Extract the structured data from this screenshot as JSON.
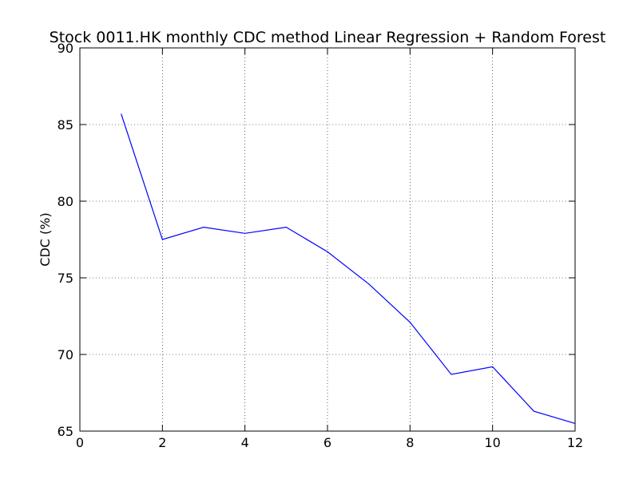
{
  "chart_data": {
    "type": "line",
    "title": "Stock 0011.HK monthly CDC method Linear Regression + Random Forest",
    "xlabel": "",
    "ylabel": "CDC (%)",
    "xlim": [
      0,
      12
    ],
    "ylim": [
      65,
      90
    ],
    "xticks": [
      0,
      2,
      4,
      6,
      8,
      10,
      12
    ],
    "yticks": [
      65,
      70,
      75,
      80,
      85,
      90
    ],
    "grid": true,
    "series": [
      {
        "color": "#0000ff",
        "x": [
          1,
          2,
          3,
          4,
          5,
          6,
          7,
          8,
          9,
          10,
          11,
          12
        ],
        "y": [
          85.7,
          77.5,
          78.3,
          77.9,
          78.3,
          76.7,
          74.6,
          72.1,
          68.7,
          69.2,
          66.3,
          65.5
        ]
      }
    ]
  }
}
